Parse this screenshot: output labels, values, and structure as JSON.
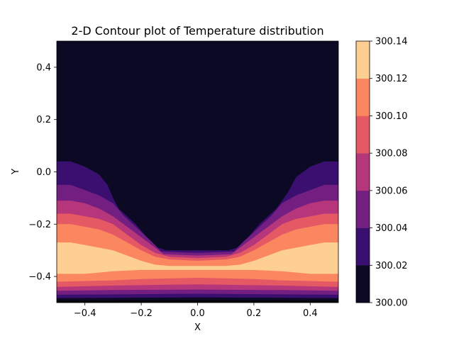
{
  "chart_data": {
    "type": "heatmap",
    "subtype": "filled-contour",
    "title": "2-D Contour plot of Temperature distribution",
    "xlabel": "X",
    "ylabel": "Y",
    "xlim": [
      -0.5,
      0.5
    ],
    "ylim": [
      -0.5,
      0.5
    ],
    "xticks": [
      -0.4,
      -0.2,
      0.0,
      0.2,
      0.4
    ],
    "xtick_labels": [
      "−0.4",
      "−0.2",
      "0.0",
      "0.2",
      "0.4"
    ],
    "yticks": [
      -0.4,
      -0.2,
      0.0,
      0.2,
      0.4
    ],
    "ytick_labels": [
      "−0.4",
      "−0.2",
      "0.0",
      "0.2",
      "0.4"
    ],
    "colormap": "magma",
    "grid": false,
    "colorbar": {
      "position": "right",
      "levels": [
        300.0,
        300.02,
        300.04,
        300.06,
        300.08,
        300.1,
        300.12,
        300.14
      ],
      "tick_labels": [
        "300.00",
        "300.02",
        "300.04",
        "300.06",
        "300.08",
        "300.10",
        "300.12",
        "300.14"
      ],
      "colors": [
        "#0b0924",
        "#3b0f70",
        "#721f81",
        "#b5367a",
        "#e55964",
        "#fb8761",
        "#fecf92"
      ]
    },
    "boundaries": [
      {
        "level": 300.02,
        "points": [
          [
            -0.5,
            0.04
          ],
          [
            -0.45,
            0.04
          ],
          [
            -0.4,
            0.02
          ],
          [
            -0.35,
            -0.01
          ],
          [
            -0.32,
            -0.05
          ],
          [
            -0.3,
            -0.1
          ],
          [
            -0.28,
            -0.14
          ],
          [
            -0.22,
            -0.2
          ],
          [
            -0.18,
            -0.25
          ],
          [
            -0.14,
            -0.29
          ],
          [
            -0.11,
            -0.3
          ],
          [
            0.0,
            -0.3
          ],
          [
            0.11,
            -0.3
          ],
          [
            0.14,
            -0.29
          ],
          [
            0.18,
            -0.25
          ],
          [
            0.22,
            -0.2
          ],
          [
            0.28,
            -0.14
          ],
          [
            0.32,
            -0.08
          ],
          [
            0.35,
            -0.02
          ],
          [
            0.4,
            0.02
          ],
          [
            0.45,
            0.04
          ],
          [
            0.5,
            0.04
          ]
        ]
      },
      {
        "level": 300.04,
        "points": [
          [
            -0.5,
            -0.05
          ],
          [
            -0.45,
            -0.05
          ],
          [
            -0.4,
            -0.07
          ],
          [
            -0.35,
            -0.09
          ],
          [
            -0.3,
            -0.12
          ],
          [
            -0.26,
            -0.17
          ],
          [
            -0.2,
            -0.23
          ],
          [
            -0.16,
            -0.27
          ],
          [
            -0.13,
            -0.305
          ],
          [
            0.0,
            -0.31
          ],
          [
            0.13,
            -0.305
          ],
          [
            0.16,
            -0.27
          ],
          [
            0.2,
            -0.23
          ],
          [
            0.26,
            -0.17
          ],
          [
            0.3,
            -0.12
          ],
          [
            0.35,
            -0.09
          ],
          [
            0.4,
            -0.07
          ],
          [
            0.45,
            -0.05
          ],
          [
            0.5,
            -0.05
          ]
        ]
      },
      {
        "level": 300.06,
        "points": [
          [
            -0.5,
            -0.11
          ],
          [
            -0.45,
            -0.11
          ],
          [
            -0.4,
            -0.12
          ],
          [
            -0.35,
            -0.14
          ],
          [
            -0.3,
            -0.17
          ],
          [
            -0.25,
            -0.21
          ],
          [
            -0.2,
            -0.25
          ],
          [
            -0.15,
            -0.29
          ],
          [
            -0.12,
            -0.315
          ],
          [
            0.0,
            -0.32
          ],
          [
            0.12,
            -0.315
          ],
          [
            0.15,
            -0.29
          ],
          [
            0.2,
            -0.25
          ],
          [
            0.25,
            -0.21
          ],
          [
            0.3,
            -0.17
          ],
          [
            0.35,
            -0.14
          ],
          [
            0.4,
            -0.12
          ],
          [
            0.45,
            -0.11
          ],
          [
            0.5,
            -0.11
          ]
        ]
      },
      {
        "level": 300.08,
        "points": [
          [
            -0.5,
            -0.16
          ],
          [
            -0.45,
            -0.16
          ],
          [
            -0.4,
            -0.17
          ],
          [
            -0.35,
            -0.18
          ],
          [
            -0.3,
            -0.2
          ],
          [
            -0.25,
            -0.24
          ],
          [
            -0.2,
            -0.28
          ],
          [
            -0.15,
            -0.31
          ],
          [
            -0.1,
            -0.325
          ],
          [
            0.0,
            -0.33
          ],
          [
            0.1,
            -0.325
          ],
          [
            0.15,
            -0.31
          ],
          [
            0.2,
            -0.28
          ],
          [
            0.25,
            -0.24
          ],
          [
            0.3,
            -0.2
          ],
          [
            0.35,
            -0.18
          ],
          [
            0.4,
            -0.17
          ],
          [
            0.45,
            -0.16
          ],
          [
            0.5,
            -0.16
          ]
        ]
      },
      {
        "level": 300.1,
        "points": [
          [
            -0.5,
            -0.2
          ],
          [
            -0.45,
            -0.2
          ],
          [
            -0.4,
            -0.21
          ],
          [
            -0.35,
            -0.22
          ],
          [
            -0.3,
            -0.24
          ],
          [
            -0.25,
            -0.27
          ],
          [
            -0.2,
            -0.3
          ],
          [
            -0.15,
            -0.325
          ],
          [
            -0.1,
            -0.335
          ],
          [
            0.0,
            -0.34
          ],
          [
            0.1,
            -0.335
          ],
          [
            0.15,
            -0.325
          ],
          [
            0.2,
            -0.3
          ],
          [
            0.25,
            -0.27
          ],
          [
            0.3,
            -0.24
          ],
          [
            0.35,
            -0.22
          ],
          [
            0.4,
            -0.21
          ],
          [
            0.45,
            -0.2
          ],
          [
            0.5,
            -0.2
          ]
        ]
      },
      {
        "level": 300.12,
        "points": [
          [
            -0.5,
            -0.27
          ],
          [
            -0.45,
            -0.27
          ],
          [
            -0.4,
            -0.28
          ],
          [
            -0.35,
            -0.29
          ],
          [
            -0.3,
            -0.3
          ],
          [
            -0.25,
            -0.32
          ],
          [
            -0.2,
            -0.34
          ],
          [
            -0.15,
            -0.355
          ],
          [
            -0.1,
            -0.36
          ],
          [
            0.0,
            -0.36
          ],
          [
            0.1,
            -0.36
          ],
          [
            0.15,
            -0.355
          ],
          [
            0.2,
            -0.34
          ],
          [
            0.25,
            -0.32
          ],
          [
            0.3,
            -0.3
          ],
          [
            0.35,
            -0.29
          ],
          [
            0.4,
            -0.28
          ],
          [
            0.45,
            -0.27
          ],
          [
            0.5,
            -0.27
          ]
        ]
      },
      {
        "level": 300.14,
        "points": [
          [
            -0.5,
            -0.39
          ],
          [
            -0.45,
            -0.39
          ],
          [
            -0.4,
            -0.39
          ],
          [
            -0.3,
            -0.38
          ],
          [
            -0.2,
            -0.375
          ],
          [
            -0.1,
            -0.375
          ],
          [
            0.0,
            -0.375
          ],
          [
            0.1,
            -0.375
          ],
          [
            0.2,
            -0.375
          ],
          [
            0.3,
            -0.38
          ],
          [
            0.4,
            -0.39
          ],
          [
            0.45,
            -0.39
          ],
          [
            0.5,
            -0.39
          ]
        ]
      },
      {
        "level": 300.12,
        "points": [
          [
            -0.5,
            -0.42
          ],
          [
            -0.3,
            -0.415
          ],
          [
            -0.2,
            -0.41
          ],
          [
            0.0,
            -0.405
          ],
          [
            0.2,
            -0.41
          ],
          [
            0.3,
            -0.415
          ],
          [
            0.5,
            -0.42
          ]
        ]
      },
      {
        "level": 300.1,
        "points": [
          [
            -0.5,
            -0.44
          ],
          [
            -0.3,
            -0.435
          ],
          [
            0.0,
            -0.43
          ],
          [
            0.3,
            -0.435
          ],
          [
            0.5,
            -0.44
          ]
        ]
      },
      {
        "level": 300.08,
        "points": [
          [
            -0.5,
            -0.455
          ],
          [
            -0.3,
            -0.452
          ],
          [
            0.0,
            -0.45
          ],
          [
            0.3,
            -0.452
          ],
          [
            0.5,
            -0.455
          ]
        ]
      },
      {
        "level": 300.06,
        "points": [
          [
            -0.5,
            -0.47
          ],
          [
            0.0,
            -0.466
          ],
          [
            0.5,
            -0.47
          ]
        ]
      },
      {
        "level": 300.04,
        "points": [
          [
            -0.5,
            -0.483
          ],
          [
            0.0,
            -0.48
          ],
          [
            0.5,
            -0.483
          ]
        ]
      },
      {
        "level": 300.02,
        "points": [
          [
            -0.5,
            -0.493
          ],
          [
            0.0,
            -0.491
          ],
          [
            0.5,
            -0.493
          ]
        ]
      }
    ],
    "band_order_note_colors": [
      "#3b0f70",
      "#721f81",
      "#b5367a",
      "#e55964",
      "#fb8761",
      "#fecf92",
      "#fb8761",
      "#e55964",
      "#b5367a",
      "#721f81",
      "#3b0f70",
      "#0b0924"
    ]
  }
}
